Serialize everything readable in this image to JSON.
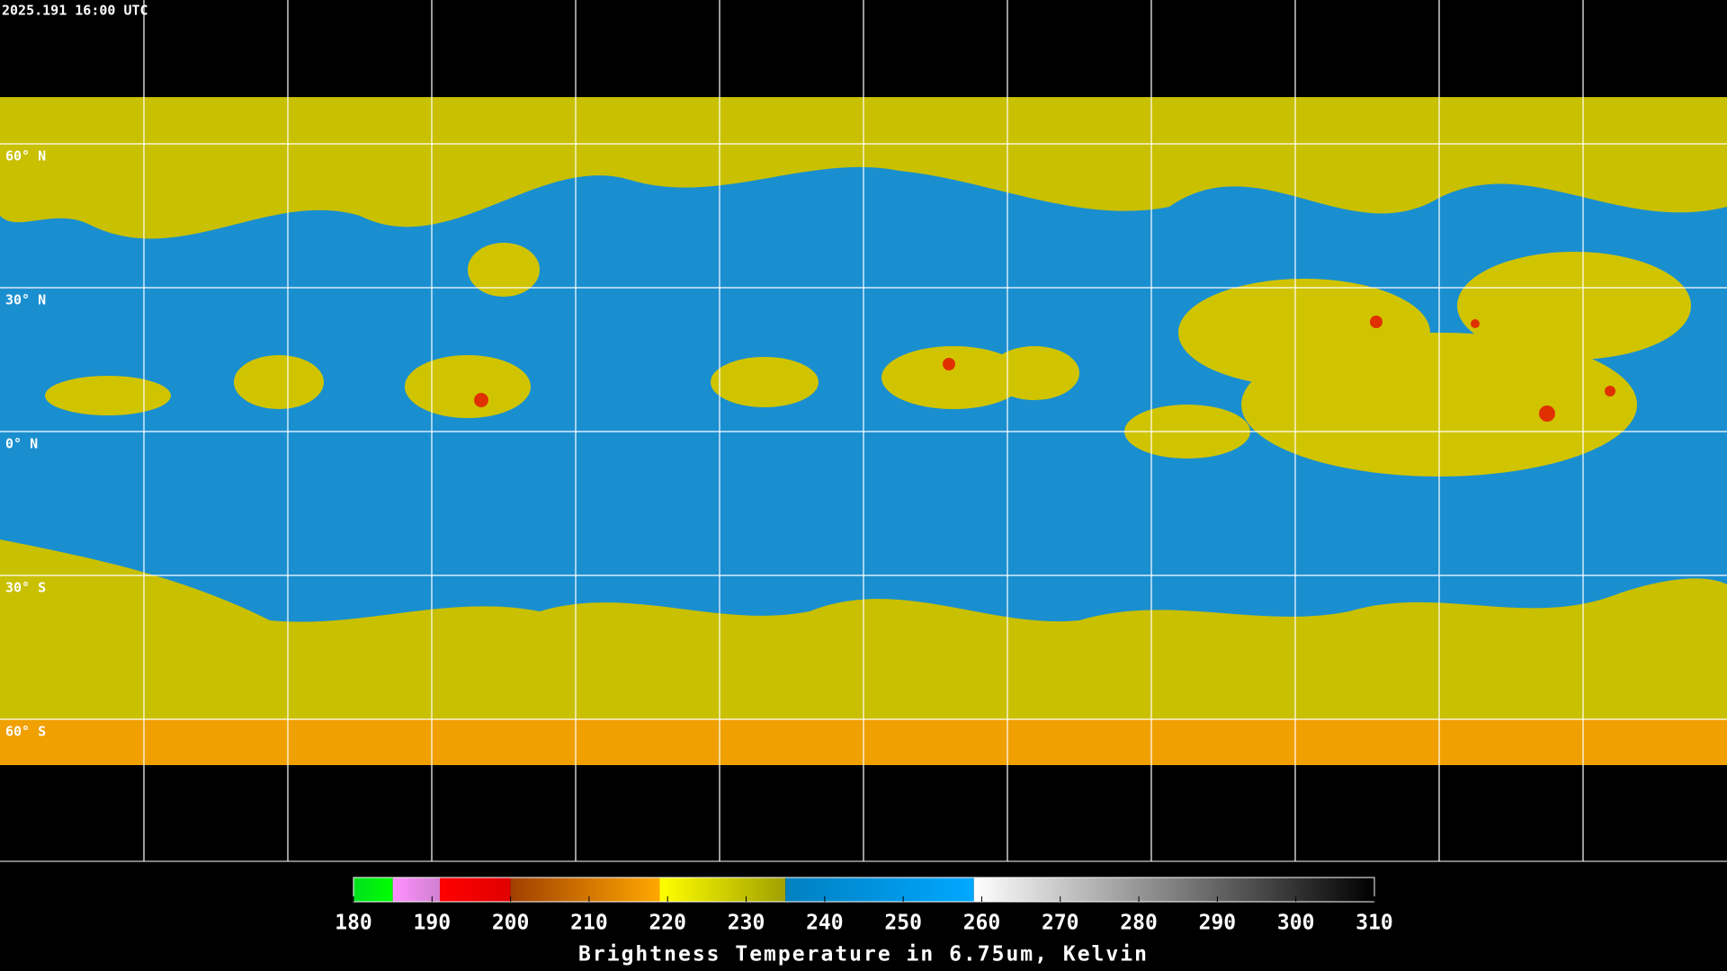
{
  "timestamp": "2025.191 16:00 UTC",
  "lat_ticks": [
    {
      "value": 60,
      "label": "60° N"
    },
    {
      "value": 30,
      "label": "30° N"
    },
    {
      "value": 0,
      "label": "0° N"
    },
    {
      "value": -30,
      "label": "30° S"
    },
    {
      "value": -60,
      "label": "60° S"
    }
  ],
  "colorbar": {
    "title": "Brightness Temperature in 6.75um, Kelvin",
    "range": [
      180,
      310
    ],
    "ticks": [
      180,
      190,
      200,
      210,
      220,
      230,
      240,
      250,
      260,
      270,
      280,
      290,
      300,
      310
    ],
    "segments": [
      {
        "from": 180,
        "to": 185,
        "colors": [
          "#00e020",
          "#00ff00"
        ]
      },
      {
        "from": 185,
        "to": 191,
        "colors": [
          "#ff90ff",
          "#d080d0"
        ]
      },
      {
        "from": 191,
        "to": 200,
        "colors": [
          "#ff0000",
          "#e00000"
        ]
      },
      {
        "from": 200,
        "to": 219,
        "colors": [
          "#a04000",
          "#ffa800"
        ]
      },
      {
        "from": 219,
        "to": 235,
        "colors": [
          "#ffff00",
          "#a0a000"
        ]
      },
      {
        "from": 235,
        "to": 259,
        "colors": [
          "#0080c0",
          "#00a8ff"
        ]
      },
      {
        "from": 259,
        "to": 310,
        "colors": [
          "#ffffff",
          "#000000"
        ]
      }
    ]
  }
}
